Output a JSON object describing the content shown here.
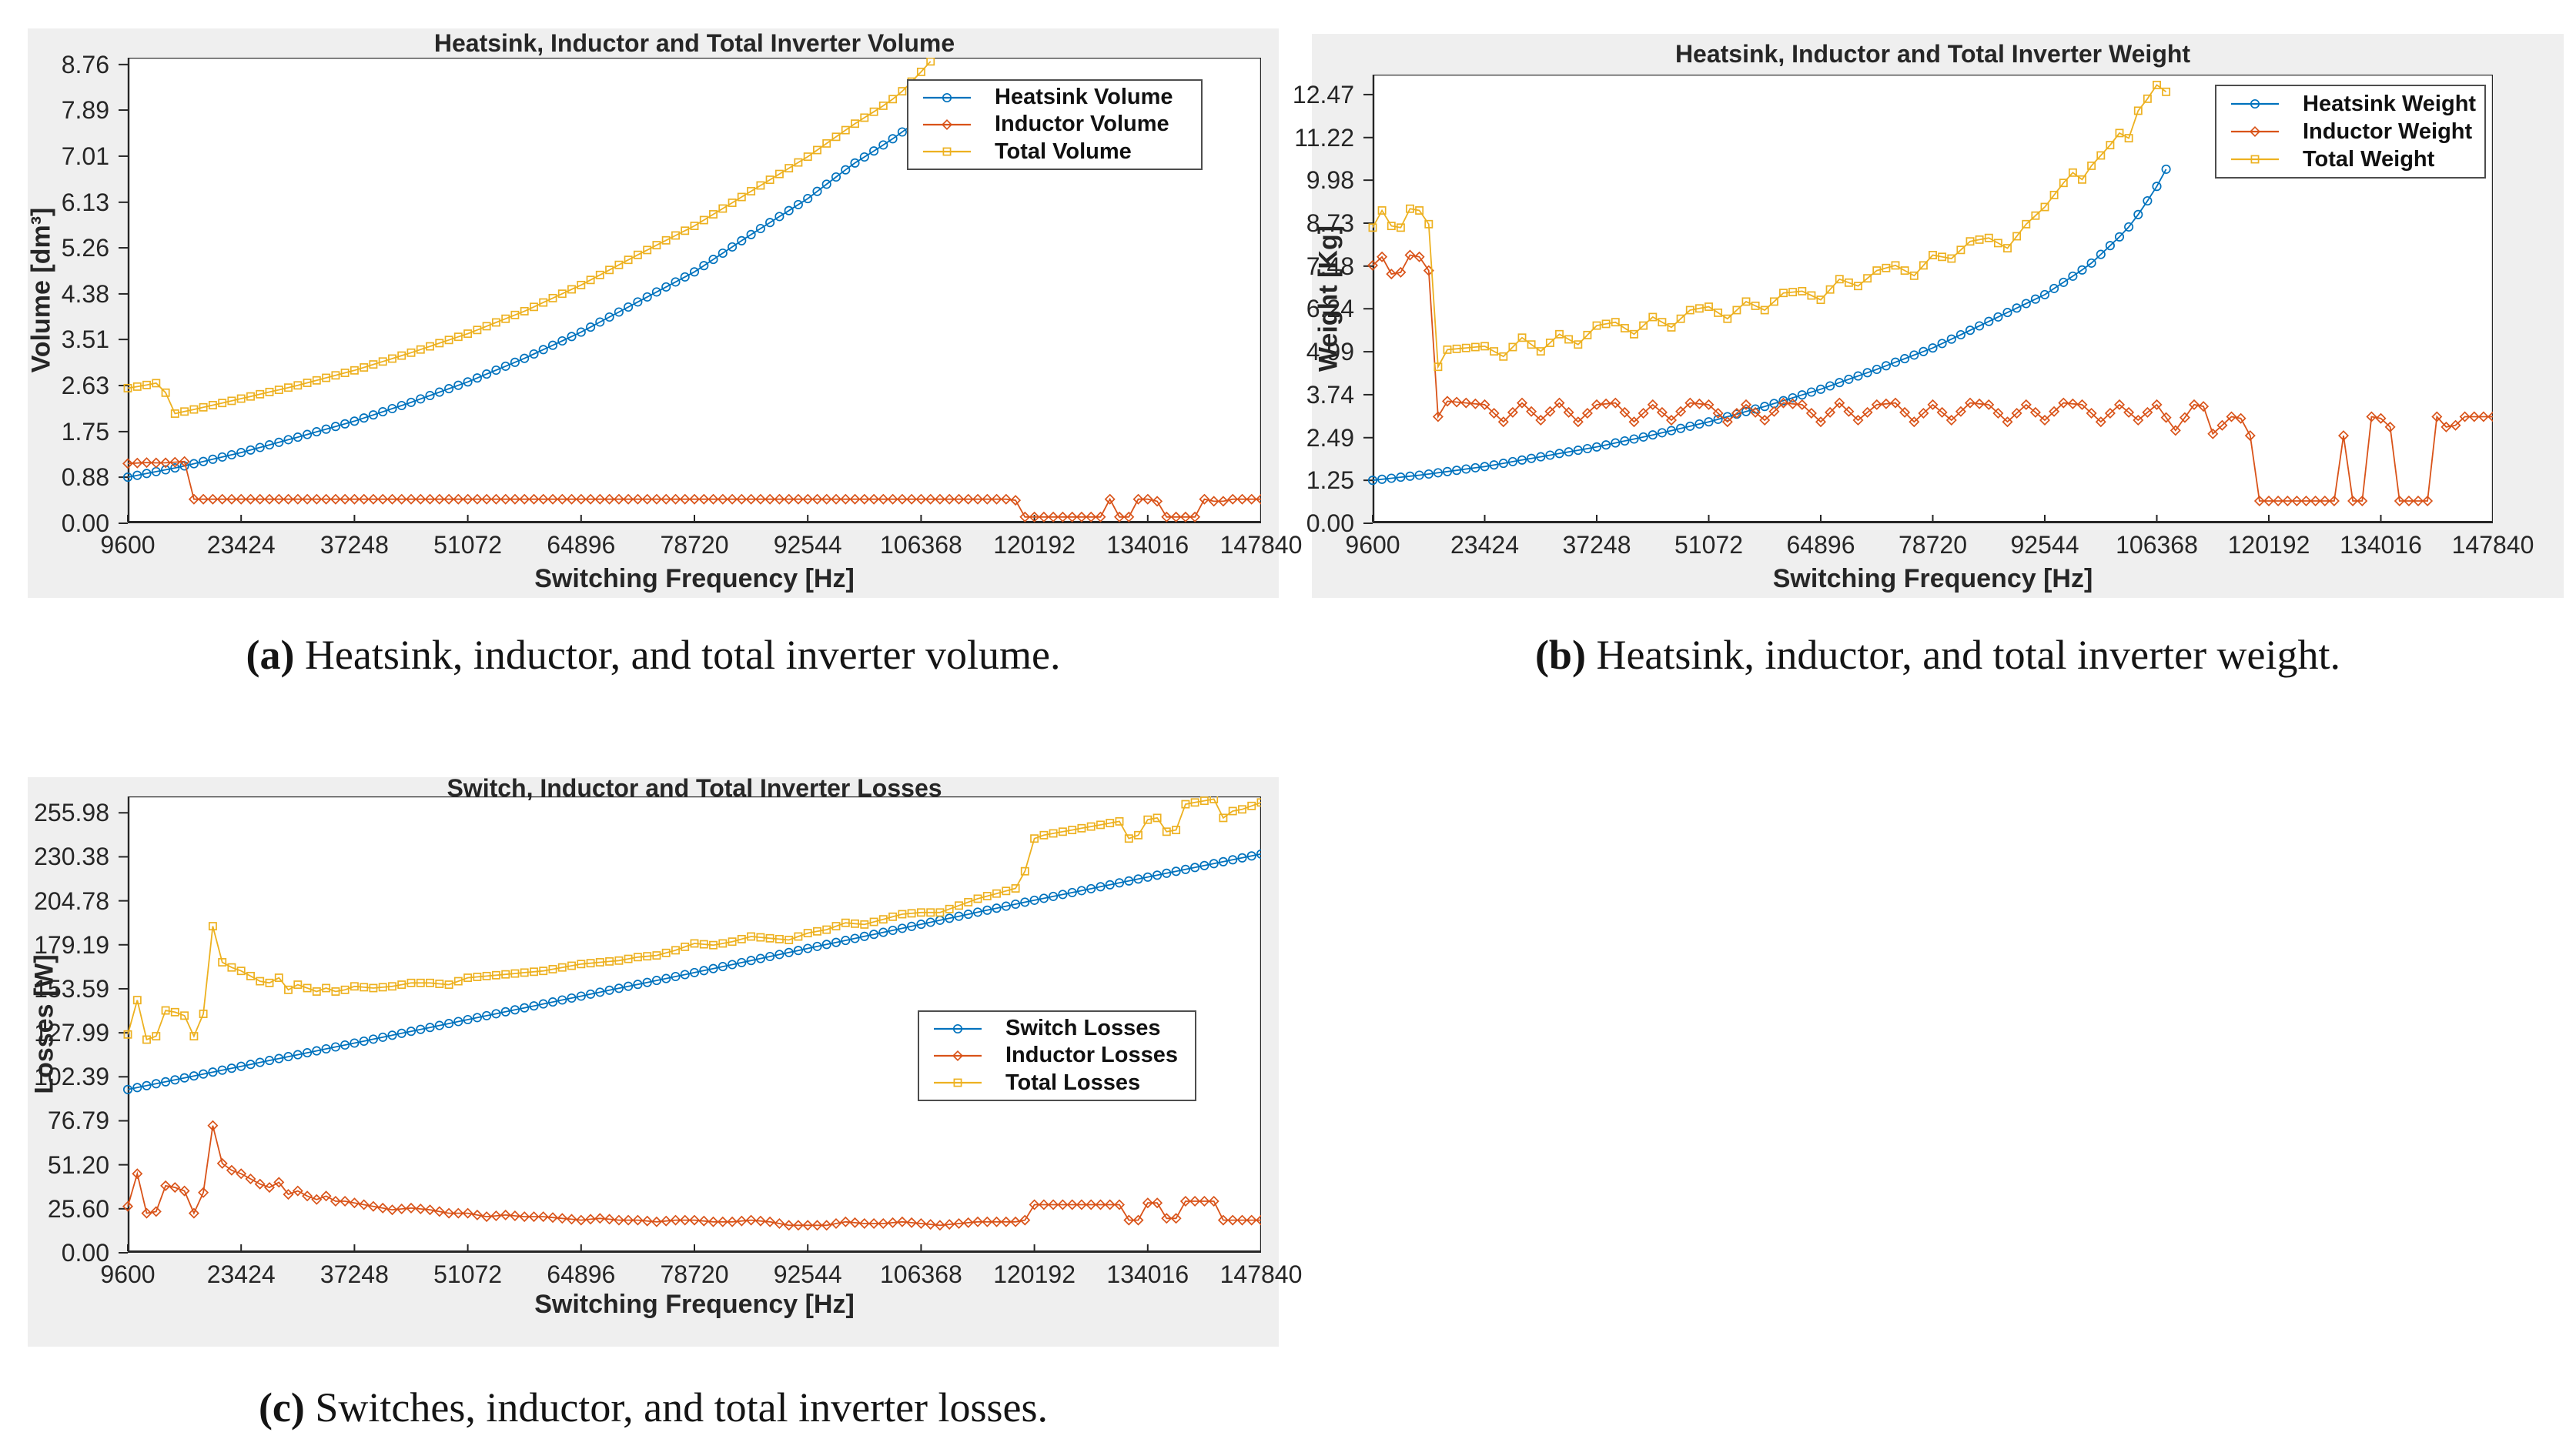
{
  "figure": {
    "captions": {
      "a": {
        "label": "(a)",
        "text": "Heatsink, inductor, and total inverter volume."
      },
      "b": {
        "label": "(b)",
        "text": "Heatsink, inductor, and total inverter weight."
      },
      "c": {
        "label": "(c)",
        "text": "Switches, inductor, and total inverter losses."
      }
    }
  },
  "colors": {
    "blue": "#0072BD",
    "orange": "#D95319",
    "yellow": "#EDB120",
    "panel_bg": "#EFEFEF",
    "axis": "#262626",
    "legend_border": "#4D4D4D"
  },
  "chart_data": [
    {
      "id": "a",
      "type": "line",
      "title": "Heatsink, Inductor and Total Inverter Volume",
      "xlabel": "Switching Frequency [Hz]",
      "ylabel": "Volume [dm³]",
      "xlim": [
        9600,
        147840
      ],
      "ylim": [
        0,
        8.89
      ],
      "grid": false,
      "sample_step_hz": 1152,
      "x_ticks": [
        9600,
        23424,
        37248,
        51072,
        64896,
        78720,
        92544,
        106368,
        120192,
        134016,
        147840
      ],
      "x_tick_labels": [
        "9600",
        "23424",
        "37248",
        "51072",
        "64896",
        "78720",
        "92544",
        "106368",
        "120192",
        "134016",
        "147840"
      ],
      "y_ticks": [
        0,
        0.88,
        1.75,
        2.63,
        3.51,
        4.38,
        5.26,
        6.13,
        7.01,
        7.89,
        8.76
      ],
      "y_tick_labels": [
        "0.00",
        "0.88",
        "1.75",
        "2.63",
        "3.51",
        "4.38",
        "5.26",
        "6.13",
        "7.01",
        "7.89",
        "8.76"
      ],
      "legend": {
        "position": "upper-right-inside",
        "entries": [
          "Heatsink Volume",
          "Inductor Volume",
          "Total Volume"
        ]
      },
      "series": [
        {
          "name": "Heatsink Volume",
          "color_key": "blue",
          "marker": "circle",
          "x_end": 107520,
          "anchors": [
            9600,
            0.88,
            16128,
            1.08,
            23424,
            1.35,
            30000,
            1.63,
            37248,
            1.95,
            44000,
            2.3,
            51072,
            2.7,
            58000,
            3.15,
            64896,
            3.65,
            71500,
            4.2,
            78720,
            4.8,
            85000,
            5.45,
            92544,
            6.2,
            98000,
            6.85,
            102528,
            7.3,
            105216,
            7.6,
            107520,
            7.95
          ]
        },
        {
          "name": "Inductor Volume",
          "color_key": "orange",
          "marker": "diamond",
          "x_end": 147840,
          "anchors": [
            9600,
            1.14,
            11904,
            1.16,
            13824,
            1.15,
            16512,
            1.18,
            17664,
            0.46,
            116736,
            0.46,
            117888,
            0.44,
            119040,
            0.12,
            128256,
            0.12,
            129408,
            0.46,
            130560,
            0.12,
            131712,
            0.12,
            132864,
            0.46,
            134016,
            0.46,
            135168,
            0.42,
            136320,
            0.12,
            139776,
            0.12,
            140928,
            0.46,
            142080,
            0.42,
            143232,
            0.42,
            144384,
            0.46,
            147840,
            0.46
          ]
        },
        {
          "name": "Total Volume",
          "color_key": "yellow",
          "marker": "square",
          "x_end": 107520,
          "anchors": [
            9600,
            2.58,
            11904,
            2.64,
            13824,
            2.7,
            14976,
            2.08,
            18432,
            2.2,
            23424,
            2.38,
            30000,
            2.62,
            37248,
            2.92,
            44000,
            3.25,
            51072,
            3.62,
            58000,
            4.05,
            64896,
            4.55,
            71500,
            5.1,
            78720,
            5.68,
            85000,
            6.28,
            92544,
            7.0,
            98000,
            7.6,
            102528,
            8.05,
            104448,
            8.3,
            105600,
            8.5,
            106752,
            8.68,
            107520,
            8.82
          ]
        }
      ]
    },
    {
      "id": "b",
      "type": "line",
      "title": "Heatsink, Inductor and Total Inverter Weight",
      "xlabel": "Switching Frequency [Hz]",
      "ylabel": "Weight [Kg]",
      "xlim": [
        9600,
        147840
      ],
      "ylim": [
        0,
        13.05
      ],
      "grid": false,
      "sample_step_hz": 1152,
      "x_ticks": [
        9600,
        23424,
        37248,
        51072,
        64896,
        78720,
        92544,
        106368,
        120192,
        134016,
        147840
      ],
      "x_tick_labels": [
        "9600",
        "23424",
        "37248",
        "51072",
        "64896",
        "78720",
        "92544",
        "106368",
        "120192",
        "134016",
        "147840"
      ],
      "y_ticks": [
        0,
        1.25,
        2.49,
        3.74,
        4.99,
        6.24,
        7.48,
        8.73,
        9.98,
        11.22,
        12.47
      ],
      "y_tick_labels": [
        "0.00",
        "1.25",
        "2.49",
        "3.74",
        "4.99",
        "6.24",
        "7.48",
        "8.73",
        "9.98",
        "11.22",
        "12.47"
      ],
      "legend": {
        "position": "upper-right-inside",
        "entries": [
          "Heatsink Weight",
          "Inductor Weight",
          "Total Weight"
        ]
      },
      "series": [
        {
          "name": "Heatsink Weight",
          "color_key": "blue",
          "marker": "circle",
          "x_end": 107520,
          "anchors": [
            9600,
            1.25,
            16128,
            1.42,
            23424,
            1.65,
            30000,
            1.92,
            37248,
            2.22,
            44000,
            2.56,
            51072,
            2.95,
            58000,
            3.4,
            64896,
            3.9,
            71500,
            4.45,
            78720,
            5.1,
            85000,
            5.8,
            92544,
            6.65,
            98000,
            7.5,
            102528,
            8.5,
            104448,
            9.1,
            106368,
            9.8,
            107520,
            10.3
          ]
        },
        {
          "name": "Inductor Weight",
          "color_key": "orange",
          "marker": "diamond",
          "x_end": 147840,
          "anchors": [
            9600,
            7.5,
            10752,
            7.75,
            11904,
            7.25,
            13056,
            7.3,
            14208,
            7.8,
            15360,
            7.75,
            16512,
            7.35,
            17664,
            3.1,
            18816,
            3.55,
            21120,
            3.5,
            23424,
            3.45,
            25728,
            2.95,
            28032,
            3.5,
            30336,
            3.0,
            32640,
            3.5,
            34944,
            2.95,
            37248,
            3.45,
            39552,
            3.5,
            41856,
            2.95,
            44160,
            3.45,
            46464,
            3.0,
            48768,
            3.5,
            51072,
            3.45,
            53376,
            2.95,
            55680,
            3.45,
            57984,
            3.0,
            60288,
            3.5,
            62592,
            3.45,
            64896,
            2.95,
            67200,
            3.5,
            69504,
            3.0,
            71808,
            3.45,
            74112,
            3.5,
            76416,
            2.95,
            78720,
            3.45,
            81024,
            3.0,
            83328,
            3.5,
            85632,
            3.45,
            87936,
            2.95,
            90240,
            3.45,
            92544,
            3.0,
            94848,
            3.5,
            97152,
            3.45,
            99456,
            2.95,
            101760,
            3.45,
            104064,
            3.0,
            106368,
            3.45,
            108672,
            2.7,
            110976,
            3.45,
            112128,
            3.4,
            113280,
            2.6,
            115584,
            3.1,
            116736,
            3.05,
            117888,
            2.55,
            119040,
            0.65,
            128256,
            0.65,
            129408,
            2.55,
            130560,
            0.65,
            131712,
            0.65,
            132864,
            3.1,
            134016,
            3.05,
            135168,
            2.8,
            136320,
            0.65,
            139776,
            0.65,
            140928,
            3.1,
            142080,
            2.8,
            143232,
            2.85,
            144384,
            3.1,
            147840,
            3.1
          ]
        },
        {
          "name": "Total Weight",
          "color_key": "yellow",
          "marker": "square",
          "x_end": 107520,
          "anchors": [
            9600,
            8.6,
            10752,
            9.1,
            11904,
            8.65,
            13056,
            8.6,
            14208,
            9.15,
            15360,
            9.1,
            16512,
            8.7,
            17664,
            4.55,
            18816,
            5.05,
            21120,
            5.1,
            23424,
            5.15,
            25728,
            4.85,
            28032,
            5.4,
            30336,
            5.0,
            32640,
            5.5,
            34944,
            5.2,
            37248,
            5.75,
            39552,
            5.85,
            41856,
            5.5,
            44160,
            6.0,
            46464,
            5.7,
            48768,
            6.2,
            51072,
            6.3,
            53376,
            5.95,
            55680,
            6.45,
            57984,
            6.2,
            60288,
            6.7,
            62592,
            6.75,
            64896,
            6.5,
            67200,
            7.1,
            69504,
            6.9,
            71808,
            7.35,
            74112,
            7.5,
            76416,
            7.2,
            78720,
            7.8,
            81024,
            7.7,
            83328,
            8.2,
            85632,
            8.3,
            87936,
            8.0,
            90240,
            8.7,
            92544,
            9.2,
            94848,
            9.9,
            96000,
            10.2,
            97152,
            10.0,
            98304,
            10.4,
            99456,
            10.7,
            100608,
            11.0,
            101760,
            11.35,
            102912,
            11.2,
            104064,
            12.0,
            105216,
            12.35,
            106368,
            12.75,
            107520,
            12.55
          ]
        }
      ]
    },
    {
      "id": "c",
      "type": "line",
      "title": "Switch, Inductor and Total Inverter Losses",
      "xlabel": "Switching Frequency [Hz]",
      "ylabel": "Losses [W]",
      "xlim": [
        9600,
        147840
      ],
      "ylim": [
        0,
        265.5
      ],
      "grid": false,
      "sample_step_hz": 1152,
      "x_ticks": [
        9600,
        23424,
        37248,
        51072,
        64896,
        78720,
        92544,
        106368,
        120192,
        134016,
        147840
      ],
      "x_tick_labels": [
        "9600",
        "23424",
        "37248",
        "51072",
        "64896",
        "78720",
        "92544",
        "106368",
        "120192",
        "134016",
        "147840"
      ],
      "y_ticks": [
        0,
        25.6,
        51.2,
        76.79,
        102.39,
        127.99,
        153.59,
        179.19,
        204.78,
        230.38,
        255.98
      ],
      "y_tick_labels": [
        "0.00",
        "25.60",
        "51.20",
        "76.79",
        "102.39",
        "127.99",
        "153.59",
        "179.19",
        "204.78",
        "230.38",
        "255.98"
      ],
      "legend": {
        "position": "middle-right-inside",
        "entries": [
          "Switch Losses",
          "Inductor Losses",
          "Total Losses"
        ]
      },
      "series": [
        {
          "name": "Switch Losses",
          "color_key": "blue",
          "marker": "circle",
          "x_end": 147840,
          "anchors": [
            9600,
            95,
            37248,
            122,
            78720,
            163,
            119040,
            204,
            147840,
            232
          ]
        },
        {
          "name": "Inductor Losses",
          "color_key": "orange",
          "marker": "diamond",
          "x_end": 147840,
          "anchors": [
            9600,
            27,
            10752,
            46,
            11904,
            23,
            13056,
            24,
            14208,
            39,
            15360,
            38,
            16512,
            36,
            17664,
            23,
            18816,
            35,
            19968,
            74,
            21120,
            52,
            22272,
            48,
            23424,
            46,
            24576,
            43,
            25728,
            40,
            26880,
            38,
            28032,
            41,
            29184,
            34,
            30336,
            36,
            31488,
            33,
            32640,
            31,
            33792,
            33,
            34944,
            30,
            36096,
            30,
            37248,
            29,
            39552,
            27,
            41856,
            25,
            44160,
            26,
            46464,
            25,
            48768,
            23,
            51072,
            23,
            53376,
            21,
            55680,
            22,
            57984,
            21,
            60288,
            21,
            62592,
            20,
            64896,
            19,
            67200,
            20,
            69504,
            19,
            71808,
            19,
            74112,
            18,
            76416,
            19,
            78720,
            19,
            81024,
            18,
            83328,
            18,
            85632,
            19,
            87936,
            18,
            90240,
            16,
            92544,
            16,
            94848,
            16,
            97152,
            18,
            99456,
            17,
            101760,
            17,
            104064,
            18,
            106368,
            17,
            108672,
            16,
            110976,
            17,
            113280,
            18,
            115584,
            18,
            117888,
            18,
            119040,
            19,
            120192,
            28,
            130560,
            28,
            131712,
            19,
            132864,
            19,
            134016,
            29,
            135168,
            29,
            136320,
            20,
            137472,
            20,
            138624,
            30,
            142080,
            30,
            143232,
            19,
            147840,
            19
          ]
        },
        {
          "name": "Total Losses",
          "color_key": "yellow",
          "marker": "square",
          "x_end": 147840,
          "anchors": [
            9600,
            127,
            10752,
            147,
            11904,
            124,
            13056,
            126,
            14208,
            141,
            15360,
            140,
            16512,
            138,
            17664,
            126,
            18816,
            139,
            19968,
            190,
            21120,
            169,
            22272,
            166,
            23424,
            164,
            24576,
            161,
            25728,
            158,
            26880,
            157,
            28032,
            160,
            29184,
            153,
            30336,
            156,
            31488,
            154,
            32640,
            152,
            33792,
            154,
            34944,
            152,
            36096,
            153,
            37248,
            155,
            39552,
            154,
            41856,
            155,
            44160,
            157,
            46464,
            157,
            48768,
            156,
            51072,
            160,
            55680,
            162,
            60288,
            164,
            64896,
            168,
            69504,
            170,
            71808,
            172,
            74112,
            173,
            76416,
            176,
            78720,
            180,
            81024,
            179,
            83328,
            181,
            85632,
            184,
            87936,
            183,
            90240,
            182,
            92544,
            186,
            94848,
            188,
            97152,
            192,
            99456,
            191,
            101760,
            194,
            104064,
            197,
            106368,
            198,
            108672,
            198,
            110976,
            202,
            113280,
            206,
            115584,
            209,
            117888,
            212,
            119040,
            222,
            120192,
            241,
            121344,
            243,
            123648,
            245,
            125952,
            247,
            128256,
            249,
            130560,
            251,
            131712,
            241,
            132864,
            243,
            134016,
            252,
            135168,
            253,
            136320,
            245,
            137472,
            246,
            138624,
            261,
            139776,
            262,
            140928,
            263,
            142080,
            264,
            143232,
            253,
            144384,
            257,
            145536,
            258,
            146688,
            260,
            147840,
            262
          ]
        }
      ]
    }
  ]
}
